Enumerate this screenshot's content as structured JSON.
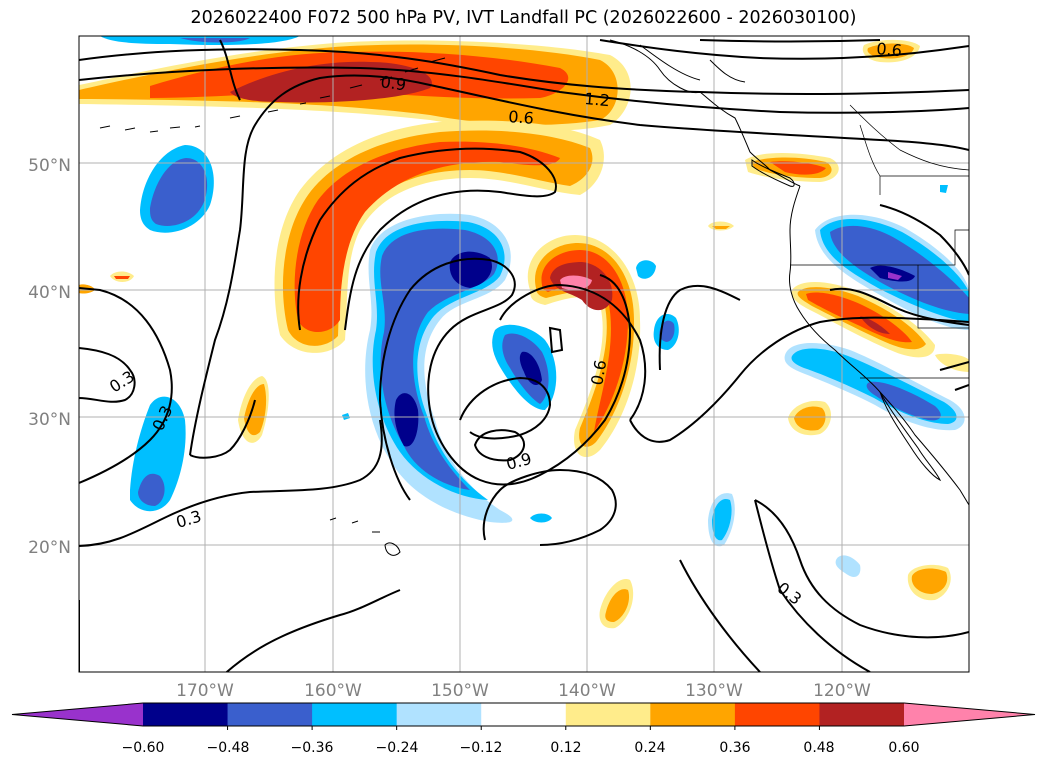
{
  "title": "2026022400 F072 500 hPa PV, IVT Landfall PC (2026022600 - 2026030100)",
  "axes": {
    "lon_labels": [
      "170°W",
      "160°W",
      "150°W",
      "140°W",
      "130°W",
      "120°W"
    ],
    "lat_labels": [
      "20°N",
      "30°N",
      "40°N",
      "50°N"
    ],
    "tick_label_color": "#808080",
    "gridline_color": "#b0b0b0"
  },
  "contour_labels": [
    "0.3",
    "0.3",
    "0.3",
    "0.3",
    "0.6",
    "0.6",
    "0.6",
    "0.9",
    "0.9",
    "1.2"
  ],
  "colorbar": {
    "colors": [
      "#9932cc",
      "#00008b",
      "#3a5fcd",
      "#00bfff",
      "#b0e2ff",
      "#ffffff",
      "#ffec8b",
      "#ffa500",
      "#ff4500",
      "#b22222",
      "#ff82ab"
    ],
    "tick_labels": [
      "−0.60",
      "−0.48",
      "−0.36",
      "−0.24",
      "−0.12",
      "0.12",
      "0.24",
      "0.36",
      "0.48",
      "0.60"
    ]
  }
}
